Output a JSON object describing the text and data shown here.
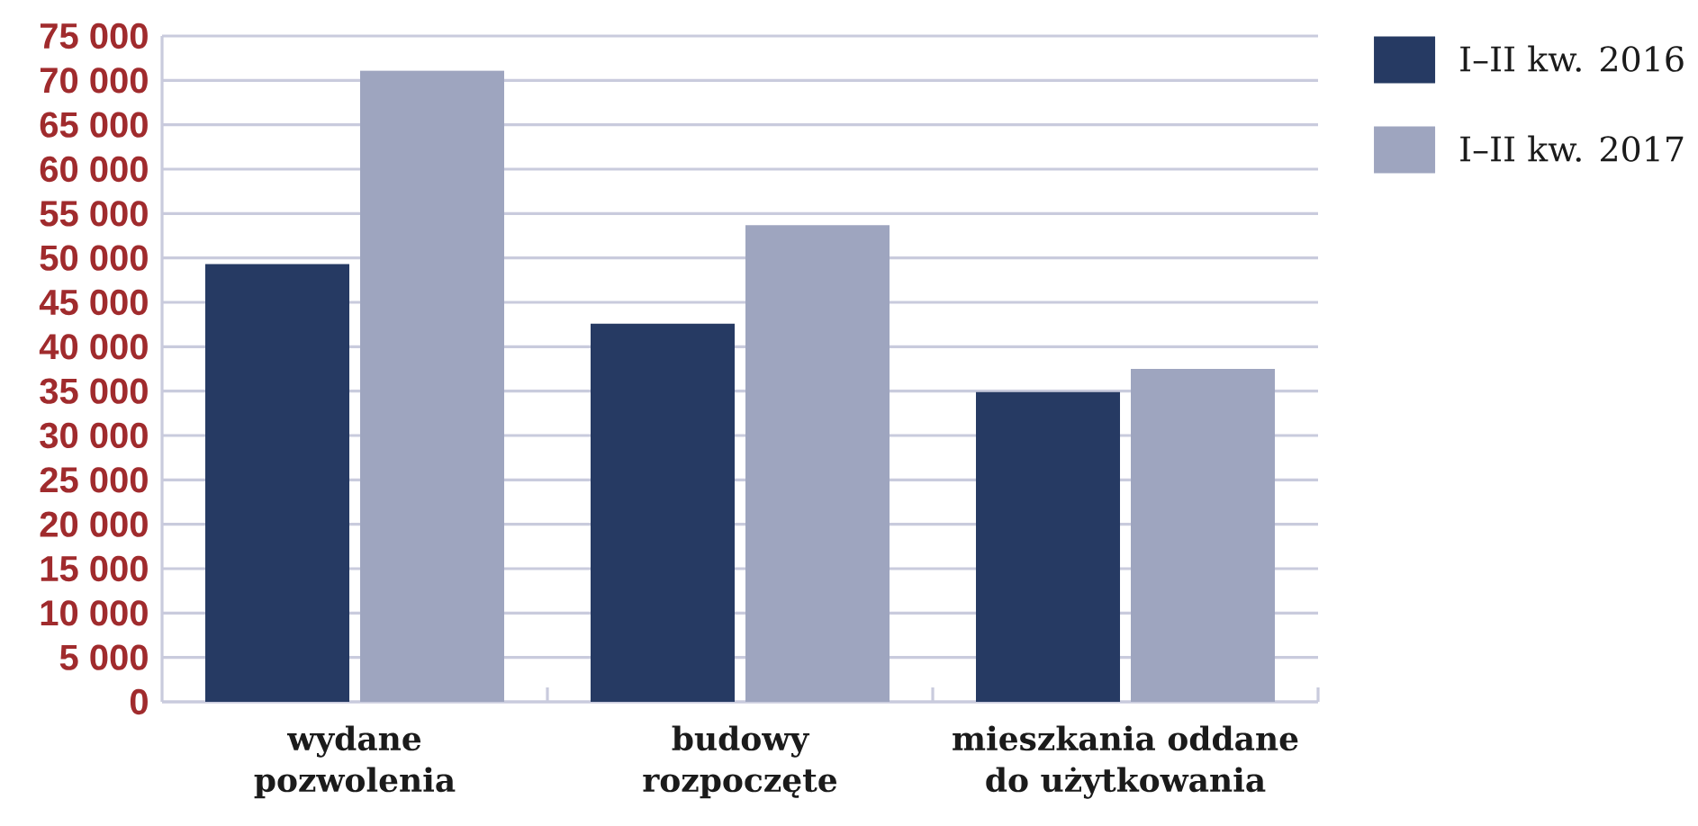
{
  "chart_data": {
    "type": "bar",
    "categories": [
      "wydane pozwolenia",
      "budowy rozpoczęte",
      "mieszkania oddane do użytkowania"
    ],
    "series": [
      {
        "name": "I–II kw. 2016",
        "color": "#263a63",
        "values": [
          49300,
          42600,
          34900
        ]
      },
      {
        "name": "I–II kw. 2017",
        "color": "#9ea5bf",
        "values": [
          71100,
          53700,
          37500
        ]
      }
    ],
    "ylim": [
      0,
      75000
    ],
    "yticks": [
      0,
      {
        "value": 5000,
        "label": "5 000"
      },
      {
        "value": 10000,
        "label": "10 000"
      },
      {
        "value": 15000,
        "label": "15 000"
      },
      {
        "value": 20000,
        "label": "20 000"
      },
      {
        "value": 25000,
        "label": "25 000"
      },
      {
        "value": 30000,
        "label": "30 000"
      },
      {
        "value": 35000,
        "label": "35 000"
      },
      {
        "value": 40000,
        "label": "40 000"
      },
      {
        "value": 45000,
        "label": "45 000"
      },
      {
        "value": 50000,
        "label": "50 000"
      },
      {
        "value": 55000,
        "label": "55 000"
      },
      {
        "value": 60000,
        "label": "60 000"
      },
      {
        "value": 65000,
        "label": "65 000"
      },
      {
        "value": 70000,
        "label": "70 000"
      },
      {
        "value": 75000,
        "label": "75 000"
      }
    ],
    "grid": "y",
    "legend": "top right"
  }
}
